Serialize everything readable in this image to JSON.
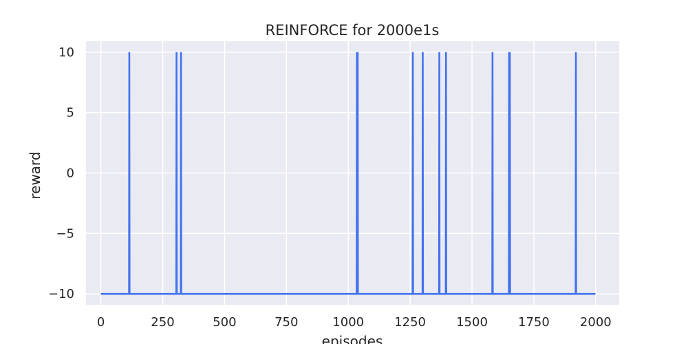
{
  "chart_data": {
    "type": "line",
    "title": "REINFORCE for 2000e1s",
    "xlabel": "episodes",
    "ylabel": "reward",
    "xlim": [
      -60,
      2095
    ],
    "ylim": [
      -10.9,
      10.9
    ],
    "xticks": [
      0,
      250,
      500,
      750,
      1000,
      1250,
      1500,
      1750,
      2000
    ],
    "xtick_labels": [
      "0",
      "250",
      "500",
      "750",
      "1000",
      "1250",
      "1500",
      "1750",
      "2000"
    ],
    "yticks": [
      10,
      5,
      0,
      -5,
      -10
    ],
    "ytick_labels": [
      "10",
      "5",
      "0",
      "−5",
      "−10"
    ],
    "grid": true,
    "background": "#eaeaf2",
    "grid_color": "#ffffff",
    "line_color": "#4372ef",
    "baseline": -10,
    "peak": 10,
    "spike_episodes": [
      115,
      306,
      324,
      1035,
      1038,
      1261,
      1301,
      1368,
      1395,
      1583,
      1650,
      1653,
      1920
    ],
    "x_range": [
      0,
      2000
    ],
    "series": [
      {
        "x": [
          0,
          114,
          115,
          116,
          305,
          306,
          307,
          323,
          324,
          325,
          1034,
          1035,
          1036,
          1037,
          1038,
          1039,
          1260,
          1261,
          1262,
          1300,
          1301,
          1302,
          1367,
          1368,
          1369,
          1394,
          1395,
          1396,
          1582,
          1583,
          1584,
          1649,
          1650,
          1651,
          1652,
          1653,
          1654,
          1919,
          1920,
          1921,
          1999
        ],
        "y": [
          -10,
          -10,
          10,
          -10,
          -10,
          10,
          -10,
          -10,
          10,
          -10,
          -10,
          10,
          -10,
          -10,
          10,
          -10,
          -10,
          10,
          -10,
          -10,
          10,
          -10,
          -10,
          10,
          -10,
          -10,
          10,
          -10,
          -10,
          10,
          -10,
          -10,
          10,
          -10,
          -10,
          10,
          -10,
          -10,
          10,
          -10,
          -10
        ]
      }
    ]
  }
}
